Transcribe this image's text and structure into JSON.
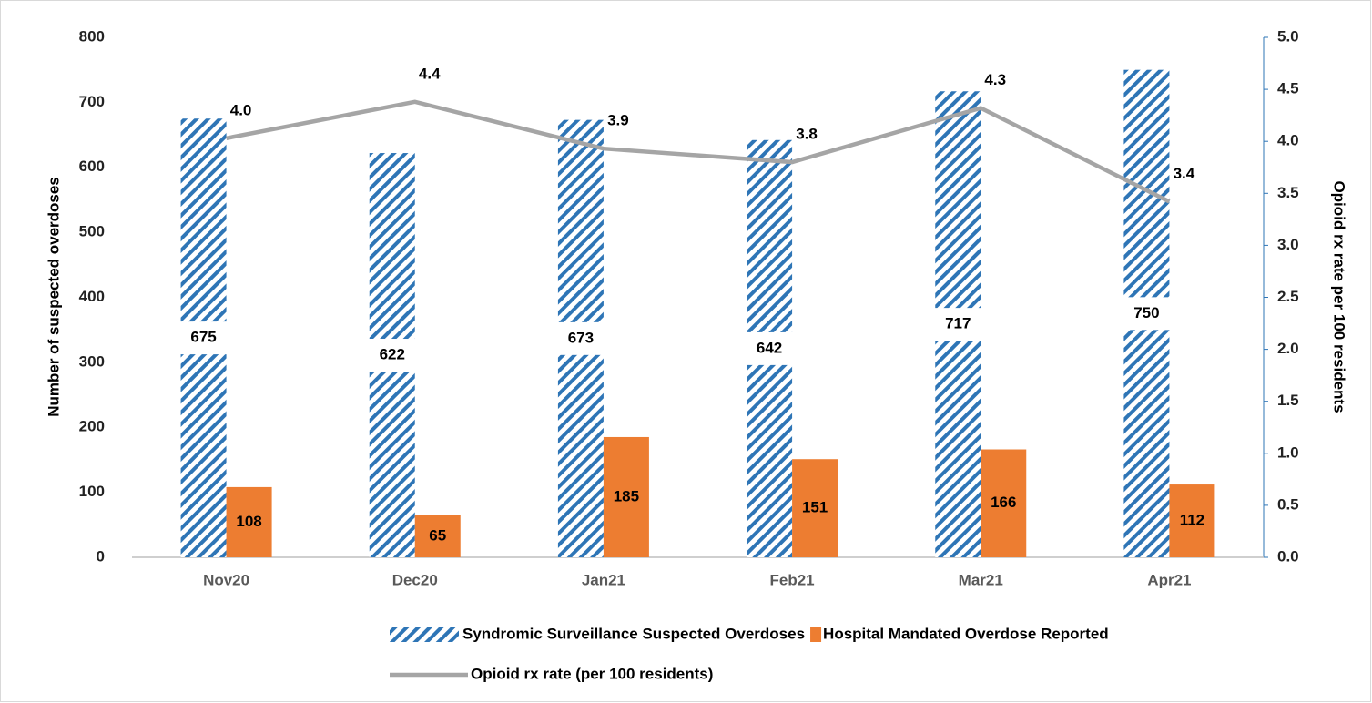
{
  "chart_data": {
    "type": "bar_line",
    "categories": [
      "Nov20",
      "Dec20",
      "Jan21",
      "Feb21",
      "Mar21",
      "Apr21"
    ],
    "series": [
      {
        "name": "Syndromic Surveillance Suspected Overdoses",
        "color": "#2e75b6",
        "fill": "hatch",
        "kind": "bar",
        "values": [
          675,
          622,
          673,
          642,
          717,
          750
        ]
      },
      {
        "name": "Hospital Mandated Overdose Reported",
        "color": "#ed7d31",
        "kind": "bar",
        "values": [
          108,
          65,
          185,
          151,
          166,
          112
        ]
      },
      {
        "name": "Opioid rx rate (per 100 residents)",
        "color": "#a5a5a5",
        "kind": "line",
        "axis": "y2",
        "values": [
          4.03,
          4.38,
          3.93,
          3.8,
          4.32,
          3.42
        ],
        "value_labels": [
          "4.0",
          "4.4",
          "3.9",
          "3.8",
          "4.3",
          "3.4"
        ]
      }
    ],
    "ylabel": "Number of suspected overdoses",
    "y2label": "Opioid rx rate per 100 residents",
    "ylim": [
      0,
      800
    ],
    "yticks": [
      0,
      100,
      200,
      300,
      400,
      500,
      600,
      700,
      800
    ],
    "y2lim": [
      0,
      5
    ],
    "y2ticks": [
      {
        "value": 0,
        "label": "0.0"
      },
      0.5,
      {
        "value": 1,
        "label": "1.0"
      },
      1.5,
      {
        "value": 2,
        "label": "2.0"
      },
      2.5,
      {
        "value": 3,
        "label": "3.0"
      },
      3.5,
      {
        "value": 4,
        "label": "4.0"
      },
      4.5,
      {
        "value": 5,
        "label": "5.0"
      }
    ],
    "legend": "bottom"
  }
}
